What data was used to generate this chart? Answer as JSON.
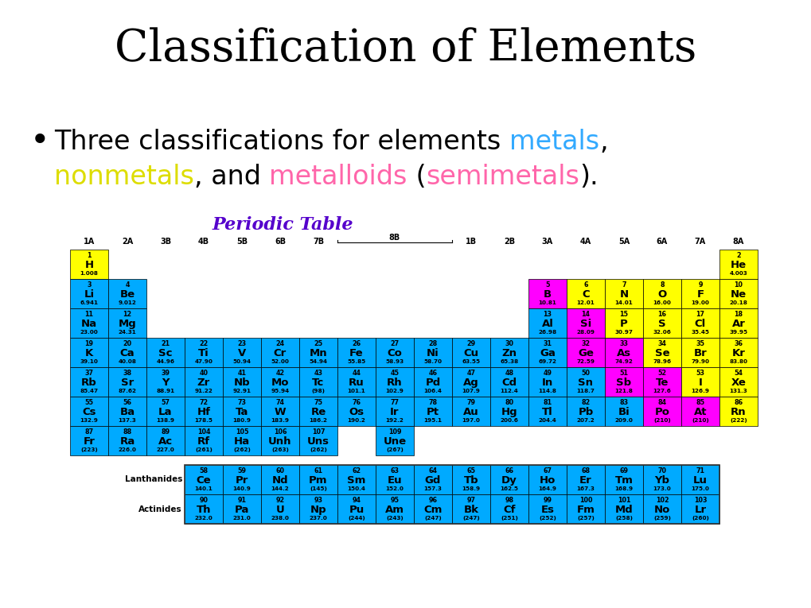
{
  "title": "Classification of Elements",
  "title_fontsize": 40,
  "color_metal": "#00aaff",
  "color_nonmetal": "#ffff00",
  "color_metalloid": "#ff00ff",
  "color_bg": "white",
  "periodic_title": "Periodic Table",
  "elements": [
    {
      "num": 1,
      "sym": "H",
      "mass": "1.008",
      "row": 1,
      "col": 1,
      "type": "nonmetal"
    },
    {
      "num": 2,
      "sym": "He",
      "mass": "4.003",
      "row": 1,
      "col": 18,
      "type": "nonmetal"
    },
    {
      "num": 3,
      "sym": "Li",
      "mass": "6.941",
      "row": 2,
      "col": 1,
      "type": "metal"
    },
    {
      "num": 4,
      "sym": "Be",
      "mass": "9.012",
      "row": 2,
      "col": 2,
      "type": "metal"
    },
    {
      "num": 5,
      "sym": "B",
      "mass": "10.81",
      "row": 2,
      "col": 13,
      "type": "metalloid"
    },
    {
      "num": 6,
      "sym": "C",
      "mass": "12.01",
      "row": 2,
      "col": 14,
      "type": "nonmetal"
    },
    {
      "num": 7,
      "sym": "N",
      "mass": "14.01",
      "row": 2,
      "col": 15,
      "type": "nonmetal"
    },
    {
      "num": 8,
      "sym": "O",
      "mass": "16.00",
      "row": 2,
      "col": 16,
      "type": "nonmetal"
    },
    {
      "num": 9,
      "sym": "F",
      "mass": "19.00",
      "row": 2,
      "col": 17,
      "type": "nonmetal"
    },
    {
      "num": 10,
      "sym": "Ne",
      "mass": "20.18",
      "row": 2,
      "col": 18,
      "type": "nonmetal"
    },
    {
      "num": 11,
      "sym": "Na",
      "mass": "23.00",
      "row": 3,
      "col": 1,
      "type": "metal"
    },
    {
      "num": 12,
      "sym": "Mg",
      "mass": "24.31",
      "row": 3,
      "col": 2,
      "type": "metal"
    },
    {
      "num": 13,
      "sym": "Al",
      "mass": "26.98",
      "row": 3,
      "col": 13,
      "type": "metal"
    },
    {
      "num": 14,
      "sym": "Si",
      "mass": "28.09",
      "row": 3,
      "col": 14,
      "type": "metalloid"
    },
    {
      "num": 15,
      "sym": "P",
      "mass": "30.97",
      "row": 3,
      "col": 15,
      "type": "nonmetal"
    },
    {
      "num": 16,
      "sym": "S",
      "mass": "32.06",
      "row": 3,
      "col": 16,
      "type": "nonmetal"
    },
    {
      "num": 17,
      "sym": "Cl",
      "mass": "35.45",
      "row": 3,
      "col": 17,
      "type": "nonmetal"
    },
    {
      "num": 18,
      "sym": "Ar",
      "mass": "39.95",
      "row": 3,
      "col": 18,
      "type": "nonmetal"
    },
    {
      "num": 19,
      "sym": "K",
      "mass": "39.10",
      "row": 4,
      "col": 1,
      "type": "metal"
    },
    {
      "num": 20,
      "sym": "Ca",
      "mass": "40.08",
      "row": 4,
      "col": 2,
      "type": "metal"
    },
    {
      "num": 21,
      "sym": "Sc",
      "mass": "44.96",
      "row": 4,
      "col": 3,
      "type": "metal"
    },
    {
      "num": 22,
      "sym": "Ti",
      "mass": "47.90",
      "row": 4,
      "col": 4,
      "type": "metal"
    },
    {
      "num": 23,
      "sym": "V",
      "mass": "50.94",
      "row": 4,
      "col": 5,
      "type": "metal"
    },
    {
      "num": 24,
      "sym": "Cr",
      "mass": "52.00",
      "row": 4,
      "col": 6,
      "type": "metal"
    },
    {
      "num": 25,
      "sym": "Mn",
      "mass": "54.94",
      "row": 4,
      "col": 7,
      "type": "metal"
    },
    {
      "num": 26,
      "sym": "Fe",
      "mass": "55.85",
      "row": 4,
      "col": 8,
      "type": "metal"
    },
    {
      "num": 27,
      "sym": "Co",
      "mass": "58.93",
      "row": 4,
      "col": 9,
      "type": "metal"
    },
    {
      "num": 28,
      "sym": "Ni",
      "mass": "58.70",
      "row": 4,
      "col": 10,
      "type": "metal"
    },
    {
      "num": 29,
      "sym": "Cu",
      "mass": "63.55",
      "row": 4,
      "col": 11,
      "type": "metal"
    },
    {
      "num": 30,
      "sym": "Zn",
      "mass": "65.38",
      "row": 4,
      "col": 12,
      "type": "metal"
    },
    {
      "num": 31,
      "sym": "Ga",
      "mass": "69.72",
      "row": 4,
      "col": 13,
      "type": "metal"
    },
    {
      "num": 32,
      "sym": "Ge",
      "mass": "72.59",
      "row": 4,
      "col": 14,
      "type": "metalloid"
    },
    {
      "num": 33,
      "sym": "As",
      "mass": "74.92",
      "row": 4,
      "col": 15,
      "type": "metalloid"
    },
    {
      "num": 34,
      "sym": "Se",
      "mass": "78.96",
      "row": 4,
      "col": 16,
      "type": "nonmetal"
    },
    {
      "num": 35,
      "sym": "Br",
      "mass": "79.90",
      "row": 4,
      "col": 17,
      "type": "nonmetal"
    },
    {
      "num": 36,
      "sym": "Kr",
      "mass": "83.80",
      "row": 4,
      "col": 18,
      "type": "nonmetal"
    },
    {
      "num": 37,
      "sym": "Rb",
      "mass": "85.47",
      "row": 5,
      "col": 1,
      "type": "metal"
    },
    {
      "num": 38,
      "sym": "Sr",
      "mass": "87.62",
      "row": 5,
      "col": 2,
      "type": "metal"
    },
    {
      "num": 39,
      "sym": "Y",
      "mass": "88.91",
      "row": 5,
      "col": 3,
      "type": "metal"
    },
    {
      "num": 40,
      "sym": "Zr",
      "mass": "91.22",
      "row": 5,
      "col": 4,
      "type": "metal"
    },
    {
      "num": 41,
      "sym": "Nb",
      "mass": "92.91",
      "row": 5,
      "col": 5,
      "type": "metal"
    },
    {
      "num": 42,
      "sym": "Mo",
      "mass": "95.94",
      "row": 5,
      "col": 6,
      "type": "metal"
    },
    {
      "num": 43,
      "sym": "Tc",
      "mass": "(98)",
      "row": 5,
      "col": 7,
      "type": "metal"
    },
    {
      "num": 44,
      "sym": "Ru",
      "mass": "101.1",
      "row": 5,
      "col": 8,
      "type": "metal"
    },
    {
      "num": 45,
      "sym": "Rh",
      "mass": "102.9",
      "row": 5,
      "col": 9,
      "type": "metal"
    },
    {
      "num": 46,
      "sym": "Pd",
      "mass": "106.4",
      "row": 5,
      "col": 10,
      "type": "metal"
    },
    {
      "num": 47,
      "sym": "Ag",
      "mass": "107.9",
      "row": 5,
      "col": 11,
      "type": "metal"
    },
    {
      "num": 48,
      "sym": "Cd",
      "mass": "112.4",
      "row": 5,
      "col": 12,
      "type": "metal"
    },
    {
      "num": 49,
      "sym": "In",
      "mass": "114.8",
      "row": 5,
      "col": 13,
      "type": "metal"
    },
    {
      "num": 50,
      "sym": "Sn",
      "mass": "118.7",
      "row": 5,
      "col": 14,
      "type": "metal"
    },
    {
      "num": 51,
      "sym": "Sb",
      "mass": "121.8",
      "row": 5,
      "col": 15,
      "type": "metalloid"
    },
    {
      "num": 52,
      "sym": "Te",
      "mass": "127.6",
      "row": 5,
      "col": 16,
      "type": "metalloid"
    },
    {
      "num": 53,
      "sym": "I",
      "mass": "126.9",
      "row": 5,
      "col": 17,
      "type": "nonmetal"
    },
    {
      "num": 54,
      "sym": "Xe",
      "mass": "131.3",
      "row": 5,
      "col": 18,
      "type": "nonmetal"
    },
    {
      "num": 55,
      "sym": "Cs",
      "mass": "132.9",
      "row": 6,
      "col": 1,
      "type": "metal"
    },
    {
      "num": 56,
      "sym": "Ba",
      "mass": "137.3",
      "row": 6,
      "col": 2,
      "type": "metal"
    },
    {
      "num": 57,
      "sym": "La",
      "mass": "138.9",
      "row": 6,
      "col": 3,
      "type": "metal"
    },
    {
      "num": 72,
      "sym": "Hf",
      "mass": "178.5",
      "row": 6,
      "col": 4,
      "type": "metal"
    },
    {
      "num": 73,
      "sym": "Ta",
      "mass": "180.9",
      "row": 6,
      "col": 5,
      "type": "metal"
    },
    {
      "num": 74,
      "sym": "W",
      "mass": "183.9",
      "row": 6,
      "col": 6,
      "type": "metal"
    },
    {
      "num": 75,
      "sym": "Re",
      "mass": "186.2",
      "row": 6,
      "col": 7,
      "type": "metal"
    },
    {
      "num": 76,
      "sym": "Os",
      "mass": "190.2",
      "row": 6,
      "col": 8,
      "type": "metal"
    },
    {
      "num": 77,
      "sym": "Ir",
      "mass": "192.2",
      "row": 6,
      "col": 9,
      "type": "metal"
    },
    {
      "num": 78,
      "sym": "Pt",
      "mass": "195.1",
      "row": 6,
      "col": 10,
      "type": "metal"
    },
    {
      "num": 79,
      "sym": "Au",
      "mass": "197.0",
      "row": 6,
      "col": 11,
      "type": "metal"
    },
    {
      "num": 80,
      "sym": "Hg",
      "mass": "200.6",
      "row": 6,
      "col": 12,
      "type": "metal"
    },
    {
      "num": 81,
      "sym": "Tl",
      "mass": "204.4",
      "row": 6,
      "col": 13,
      "type": "metal"
    },
    {
      "num": 82,
      "sym": "Pb",
      "mass": "207.2",
      "row": 6,
      "col": 14,
      "type": "metal"
    },
    {
      "num": 83,
      "sym": "Bi",
      "mass": "209.0",
      "row": 6,
      "col": 15,
      "type": "metal"
    },
    {
      "num": 84,
      "sym": "Po",
      "mass": "(210)",
      "row": 6,
      "col": 16,
      "type": "metalloid"
    },
    {
      "num": 85,
      "sym": "At",
      "mass": "(210)",
      "row": 6,
      "col": 17,
      "type": "metalloid"
    },
    {
      "num": 86,
      "sym": "Rn",
      "mass": "(222)",
      "row": 6,
      "col": 18,
      "type": "nonmetal"
    },
    {
      "num": 87,
      "sym": "Fr",
      "mass": "(223)",
      "row": 7,
      "col": 1,
      "type": "metal"
    },
    {
      "num": 88,
      "sym": "Ra",
      "mass": "226.0",
      "row": 7,
      "col": 2,
      "type": "metal"
    },
    {
      "num": 89,
      "sym": "Ac",
      "mass": "227.0",
      "row": 7,
      "col": 3,
      "type": "metal"
    },
    {
      "num": 104,
      "sym": "Rf",
      "mass": "(261)",
      "row": 7,
      "col": 4,
      "type": "metal"
    },
    {
      "num": 105,
      "sym": "Ha",
      "mass": "(262)",
      "row": 7,
      "col": 5,
      "type": "metal"
    },
    {
      "num": 106,
      "sym": "Unh",
      "mass": "(263)",
      "row": 7,
      "col": 6,
      "type": "metal"
    },
    {
      "num": 107,
      "sym": "Uns",
      "mass": "(262)",
      "row": 7,
      "col": 7,
      "type": "metal"
    },
    {
      "num": 109,
      "sym": "Une",
      "mass": "(267)",
      "row": 7,
      "col": 9,
      "type": "metal"
    },
    {
      "num": 58,
      "sym": "Ce",
      "mass": "140.1",
      "row": 9,
      "col": 4,
      "type": "metal"
    },
    {
      "num": 59,
      "sym": "Pr",
      "mass": "140.9",
      "row": 9,
      "col": 5,
      "type": "metal"
    },
    {
      "num": 60,
      "sym": "Nd",
      "mass": "144.2",
      "row": 9,
      "col": 6,
      "type": "metal"
    },
    {
      "num": 61,
      "sym": "Pm",
      "mass": "(145)",
      "row": 9,
      "col": 7,
      "type": "metal"
    },
    {
      "num": 62,
      "sym": "Sm",
      "mass": "150.4",
      "row": 9,
      "col": 8,
      "type": "metal"
    },
    {
      "num": 63,
      "sym": "Eu",
      "mass": "152.0",
      "row": 9,
      "col": 9,
      "type": "metal"
    },
    {
      "num": 64,
      "sym": "Gd",
      "mass": "157.3",
      "row": 9,
      "col": 10,
      "type": "metal"
    },
    {
      "num": 65,
      "sym": "Tb",
      "mass": "158.9",
      "row": 9,
      "col": 11,
      "type": "metal"
    },
    {
      "num": 66,
      "sym": "Dy",
      "mass": "162.5",
      "row": 9,
      "col": 12,
      "type": "metal"
    },
    {
      "num": 67,
      "sym": "Ho",
      "mass": "164.9",
      "row": 9,
      "col": 13,
      "type": "metal"
    },
    {
      "num": 68,
      "sym": "Er",
      "mass": "167.3",
      "row": 9,
      "col": 14,
      "type": "metal"
    },
    {
      "num": 69,
      "sym": "Tm",
      "mass": "168.9",
      "row": 9,
      "col": 15,
      "type": "metal"
    },
    {
      "num": 70,
      "sym": "Yb",
      "mass": "173.0",
      "row": 9,
      "col": 16,
      "type": "metal"
    },
    {
      "num": 71,
      "sym": "Lu",
      "mass": "175.0",
      "row": 9,
      "col": 17,
      "type": "metal"
    },
    {
      "num": 90,
      "sym": "Th",
      "mass": "232.0",
      "row": 10,
      "col": 4,
      "type": "metal"
    },
    {
      "num": 91,
      "sym": "Pa",
      "mass": "231.0",
      "row": 10,
      "col": 5,
      "type": "metal"
    },
    {
      "num": 92,
      "sym": "U",
      "mass": "238.0",
      "row": 10,
      "col": 6,
      "type": "metal"
    },
    {
      "num": 93,
      "sym": "Np",
      "mass": "237.0",
      "row": 10,
      "col": 7,
      "type": "metal"
    },
    {
      "num": 94,
      "sym": "Pu",
      "mass": "(244)",
      "row": 10,
      "col": 8,
      "type": "metal"
    },
    {
      "num": 95,
      "sym": "Am",
      "mass": "(243)",
      "row": 10,
      "col": 9,
      "type": "metal"
    },
    {
      "num": 96,
      "sym": "Cm",
      "mass": "(247)",
      "row": 10,
      "col": 10,
      "type": "metal"
    },
    {
      "num": 97,
      "sym": "Bk",
      "mass": "(247)",
      "row": 10,
      "col": 11,
      "type": "metal"
    },
    {
      "num": 98,
      "sym": "Cf",
      "mass": "(251)",
      "row": 10,
      "col": 12,
      "type": "metal"
    },
    {
      "num": 99,
      "sym": "Es",
      "mass": "(252)",
      "row": 10,
      "col": 13,
      "type": "metal"
    },
    {
      "num": 100,
      "sym": "Fm",
      "mass": "(257)",
      "row": 10,
      "col": 14,
      "type": "metal"
    },
    {
      "num": 101,
      "sym": "Md",
      "mass": "(258)",
      "row": 10,
      "col": 15,
      "type": "metal"
    },
    {
      "num": 102,
      "sym": "No",
      "mass": "(259)",
      "row": 10,
      "col": 16,
      "type": "metal"
    },
    {
      "num": 103,
      "sym": "Lr",
      "mass": "(260)",
      "row": 10,
      "col": 17,
      "type": "metal"
    }
  ]
}
